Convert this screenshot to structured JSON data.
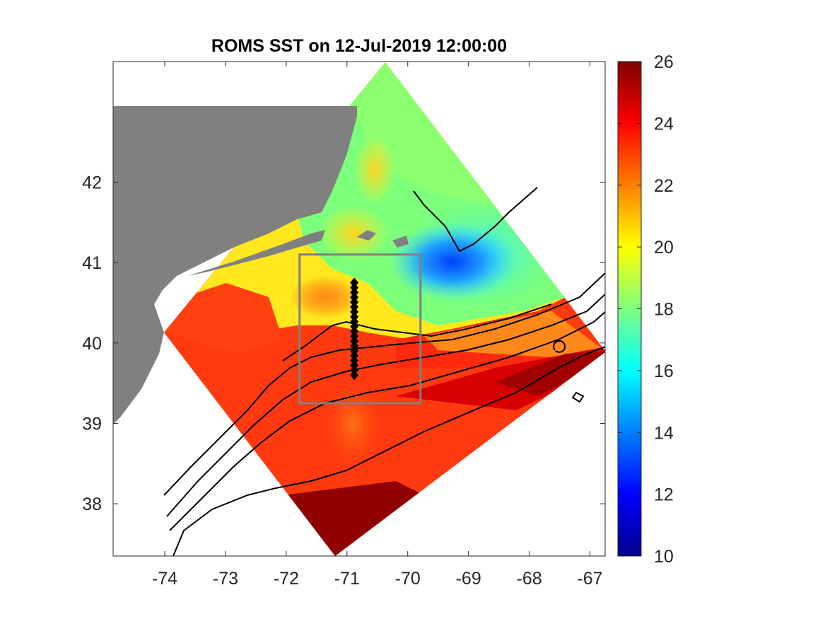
{
  "figure": {
    "title": "ROMS SST on 12-Jul-2019 12:00:00"
  },
  "map": {
    "lon_range": [
      -74.85,
      -66.75
    ],
    "lat_range": [
      37.35,
      43.5
    ],
    "lon_ticks": [
      -74,
      -73,
      -72,
      -71,
      -70,
      -69,
      -68,
      -67
    ],
    "lon_tick_labels": [
      "-74",
      "-73",
      "-72",
      "-71",
      "-70",
      "-69",
      "-68",
      "-67"
    ],
    "lat_ticks": [
      38,
      39,
      40,
      41,
      42
    ],
    "lat_tick_labels": [
      "38",
      "39",
      "40",
      "41",
      "42"
    ],
    "colors": {
      "land": "#808080",
      "box": "#808080",
      "contour": "#000000",
      "marker": "#000000"
    }
  },
  "colorbar": {
    "range": [
      10,
      26
    ],
    "colormap": "jet",
    "ticks": [
      10,
      12,
      14,
      16,
      18,
      20,
      22,
      24,
      26
    ],
    "tick_labels": [
      "10",
      "12",
      "14",
      "16",
      "18",
      "20",
      "22",
      "24",
      "26"
    ]
  },
  "overlays": {
    "selection_box": {
      "lon": [
        -71.78,
        -69.79
      ],
      "lat": [
        39.25,
        41.1
      ]
    },
    "transect": {
      "lon": -70.88,
      "lat_start": 39.6,
      "lat_end": 40.75,
      "count": 20,
      "marker": "diamond"
    }
  }
}
